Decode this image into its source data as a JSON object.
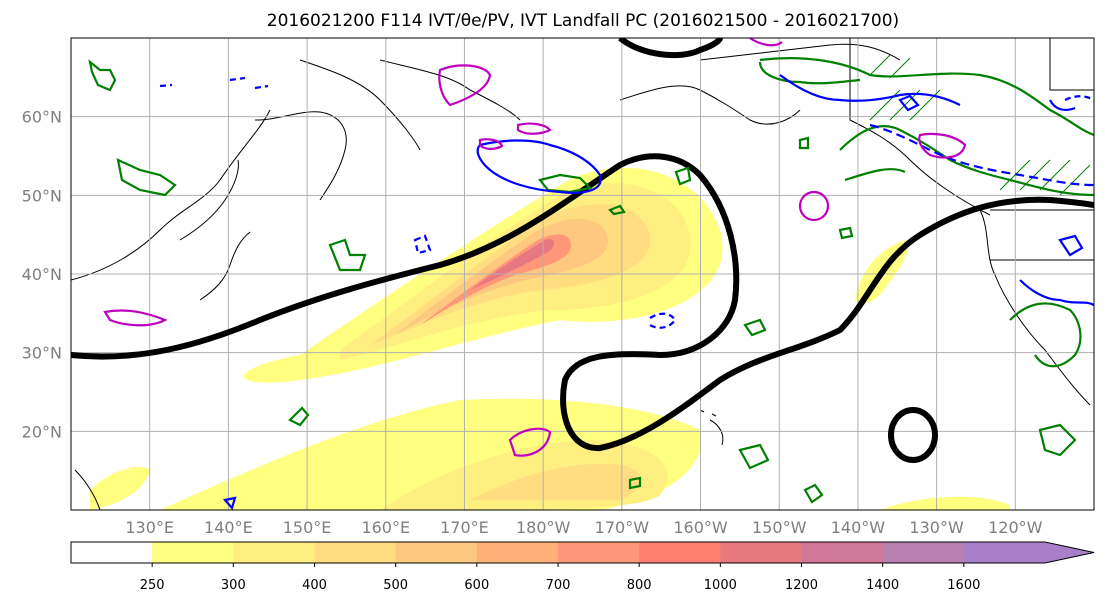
{
  "title": "2016021200 F114 IVT/θe/PV, IVT Landfall PC (2016021500 - 2016021700)",
  "map": {
    "lon_range": [
      120,
      250
    ],
    "lat_range": [
      10,
      70
    ],
    "lat_ticks": [
      {
        "value": 20,
        "label": "20°N"
      },
      {
        "value": 30,
        "label": "30°N"
      },
      {
        "value": 40,
        "label": "40°N"
      },
      {
        "value": 50,
        "label": "50°N"
      },
      {
        "value": 60,
        "label": "60°N"
      }
    ],
    "lon_ticks": [
      {
        "value": 130,
        "label": "130°E"
      },
      {
        "value": 140,
        "label": "140°E"
      },
      {
        "value": 150,
        "label": "150°E"
      },
      {
        "value": 160,
        "label": "160°E"
      },
      {
        "value": 170,
        "label": "170°E"
      },
      {
        "value": 180,
        "label": "180°W"
      },
      {
        "value": 190,
        "label": "170°W"
      },
      {
        "value": 200,
        "label": "160°W"
      },
      {
        "value": 210,
        "label": "150°W"
      },
      {
        "value": 220,
        "label": "140°W"
      },
      {
        "value": 230,
        "label": "130°W"
      },
      {
        "value": 240,
        "label": "120°W"
      }
    ],
    "grid": true
  },
  "colorbar": {
    "levels": [
      "250",
      "300",
      "400",
      "500",
      "600",
      "700",
      "800",
      "1000",
      "1200",
      "1400",
      "1600"
    ],
    "colors": [
      "#ffffff",
      "#ffff80",
      "#ffee80",
      "#ffdd80",
      "#ffc880",
      "#ffb078",
      "#ff9878",
      "#ff8070",
      "#e87880",
      "#d07898",
      "#b880b0",
      "#a880c8"
    ],
    "extend": "max"
  },
  "colors": {
    "theta_e_contour": "#000000",
    "pv_positive": "#008000",
    "pv_negative": "#0000ff",
    "pv_magenta": "#c000c0",
    "coastline": "#000000",
    "gridline": "#b0b0b0"
  }
}
